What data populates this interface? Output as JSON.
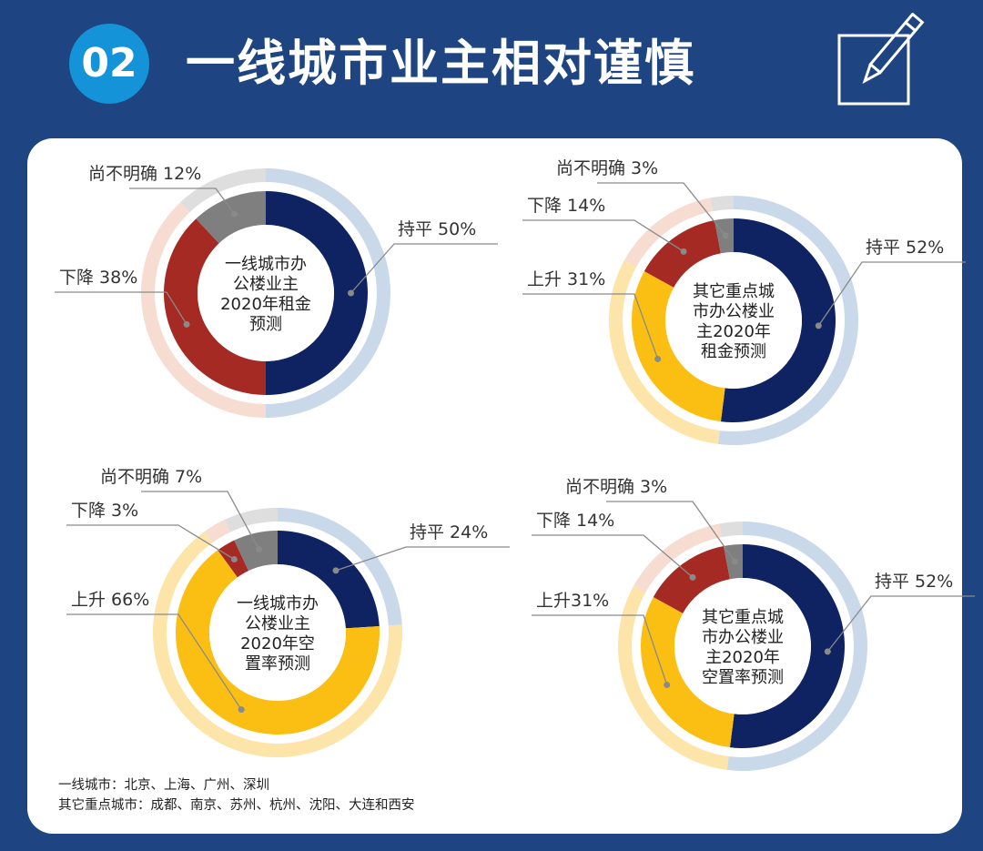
{
  "header": {
    "badge": "02",
    "title": "一线城市业主相对谨慎"
  },
  "colors": {
    "background": "#1e4582",
    "card": "#ffffff",
    "badge": "#1593d8",
    "flat": "#0f2363",
    "flat_light": "#c9d9ea",
    "rise": "#fbbf14",
    "rise_light": "#fde4a8",
    "fall": "#a52a24",
    "fall_light": "#f7dcd2",
    "unclear": "#7f7f7f",
    "unclear_light": "#dedede"
  },
  "chart_data": [
    {
      "type": "pie",
      "style": "donut",
      "center_lines": [
        "一线城市办",
        "公楼业主",
        "2020年租金",
        "预测"
      ],
      "slices": [
        {
          "key": "flat",
          "name": "持平",
          "value": 50,
          "label": "持平 50%"
        },
        {
          "key": "fall",
          "name": "下降",
          "value": 38,
          "label": "下降 38%"
        },
        {
          "key": "unclear",
          "name": "尚不明确",
          "value": 12,
          "label": "尚不明确 12%"
        }
      ]
    },
    {
      "type": "pie",
      "style": "donut",
      "center_lines": [
        "其它重点城",
        "市办公楼业",
        "主2020年",
        "租金预测"
      ],
      "slices": [
        {
          "key": "flat",
          "name": "持平",
          "value": 52,
          "label": "持平 52%"
        },
        {
          "key": "rise",
          "name": "上升",
          "value": 31,
          "label": "上升 31%"
        },
        {
          "key": "fall",
          "name": "下降",
          "value": 14,
          "label": "下降 14%"
        },
        {
          "key": "unclear",
          "name": "尚不明确",
          "value": 3,
          "label": "尚不明确 3%"
        }
      ]
    },
    {
      "type": "pie",
      "style": "donut",
      "center_lines": [
        "一线城市办",
        "公楼业主",
        "2020年空",
        "置率预测"
      ],
      "slices": [
        {
          "key": "flat",
          "name": "持平",
          "value": 24,
          "label": "持平 24%"
        },
        {
          "key": "rise",
          "name": "上升",
          "value": 66,
          "label": "上升 66%"
        },
        {
          "key": "fall",
          "name": "下降",
          "value": 3,
          "label": "下降 3%"
        },
        {
          "key": "unclear",
          "name": "尚不明确",
          "value": 7,
          "label": "尚不明确 7%"
        }
      ]
    },
    {
      "type": "pie",
      "style": "donut",
      "center_lines": [
        "其它重点城",
        "市办公楼业",
        "主2020年",
        "空置率预测"
      ],
      "slices": [
        {
          "key": "flat",
          "name": "持平",
          "value": 52,
          "label": "持平 52%"
        },
        {
          "key": "rise",
          "name": "上升",
          "value": 31,
          "label": "上升31%"
        },
        {
          "key": "fall",
          "name": "下降",
          "value": 14,
          "label": "下降 14%"
        },
        {
          "key": "unclear",
          "name": "尚不明确",
          "value": 3,
          "label": "尚不明确 3%"
        }
      ]
    }
  ],
  "notes": {
    "tier1": "一线城市：北京、上海、广州、深圳",
    "others": "其它重点城市：成都、南京、苏州、杭州、沈阳、大连和西安"
  }
}
